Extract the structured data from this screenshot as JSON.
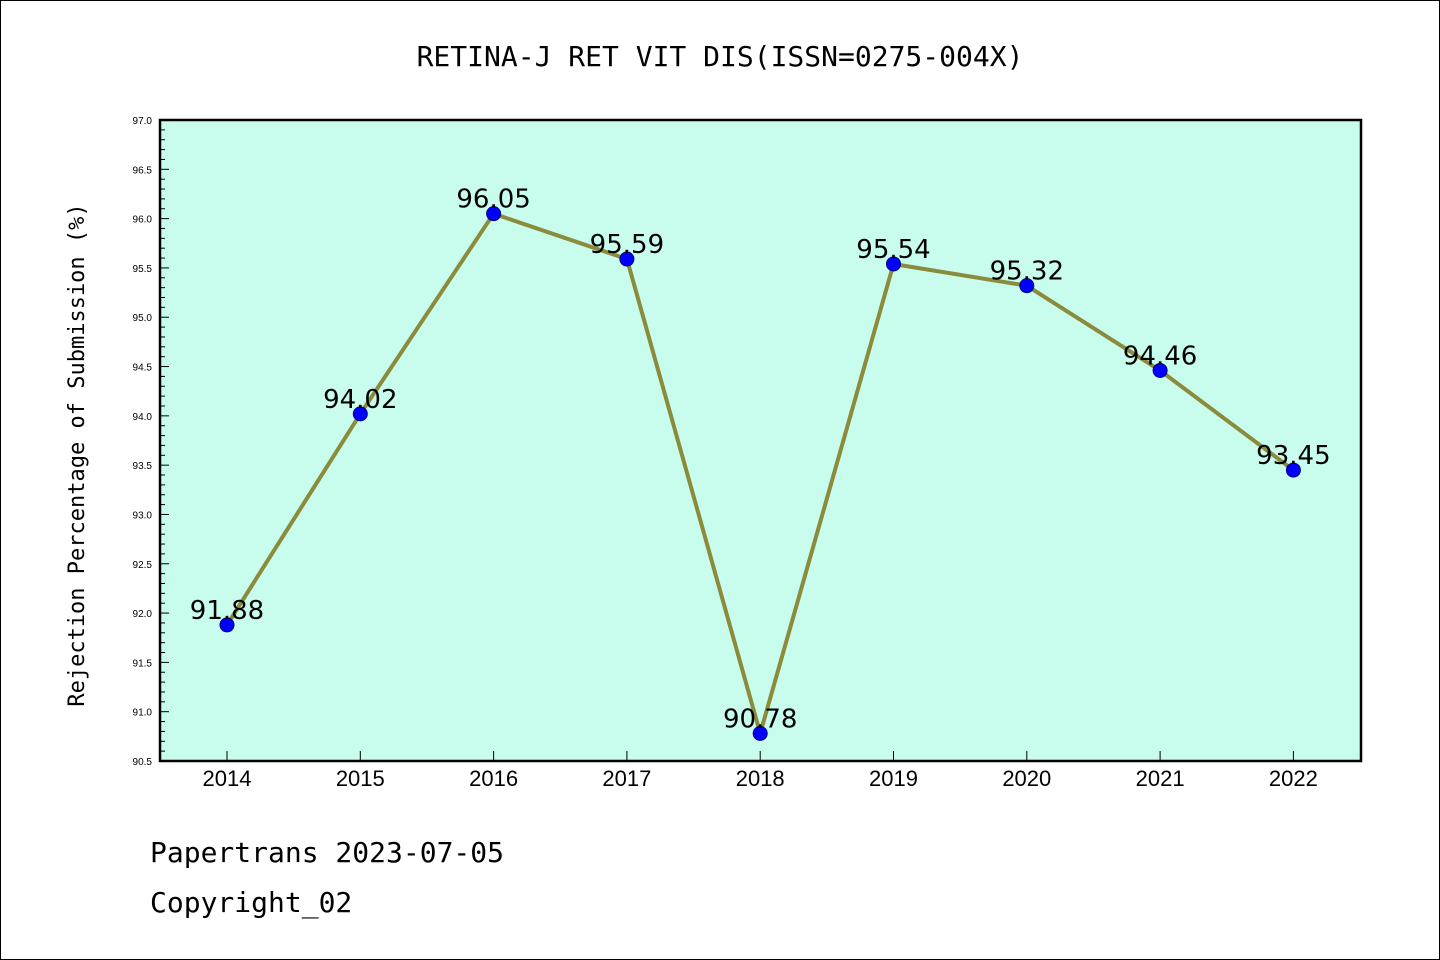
{
  "chart_data": {
    "type": "line",
    "title": "RETINA-J RET VIT DIS(ISSN=0275-004X)",
    "xlabel": "",
    "ylabel": "Rejection Percentage of Submission (%)",
    "categories": [
      "2014",
      "2015",
      "2016",
      "2017",
      "2018",
      "2019",
      "2020",
      "2021",
      "2022"
    ],
    "series": [
      {
        "values": [
          91.88,
          94.02,
          96.05,
          95.59,
          90.78,
          95.54,
          95.32,
          94.46,
          93.45
        ],
        "data_labels": [
          "91.88",
          "94.02",
          "96.05",
          "95.59",
          "90.78",
          "95.54",
          "95.32",
          "94.46",
          "93.45"
        ]
      }
    ],
    "ylim": [
      90.5,
      97.0
    ],
    "yticks": [
      "90.5",
      "91.0",
      "91.5",
      "92.0",
      "92.5",
      "93.0",
      "93.5",
      "94.0",
      "94.5",
      "95.0",
      "95.5",
      "96.0",
      "96.5",
      "97.0"
    ],
    "grid": false,
    "legend": "none",
    "colors": {
      "plot_background": "#c8fced",
      "line": "#8b8b3c",
      "marker": "#0000ff",
      "marker_edge": "#000080"
    }
  },
  "footer": {
    "line1": "Papertrans 2023-07-05",
    "line2": "Copyright_02"
  }
}
